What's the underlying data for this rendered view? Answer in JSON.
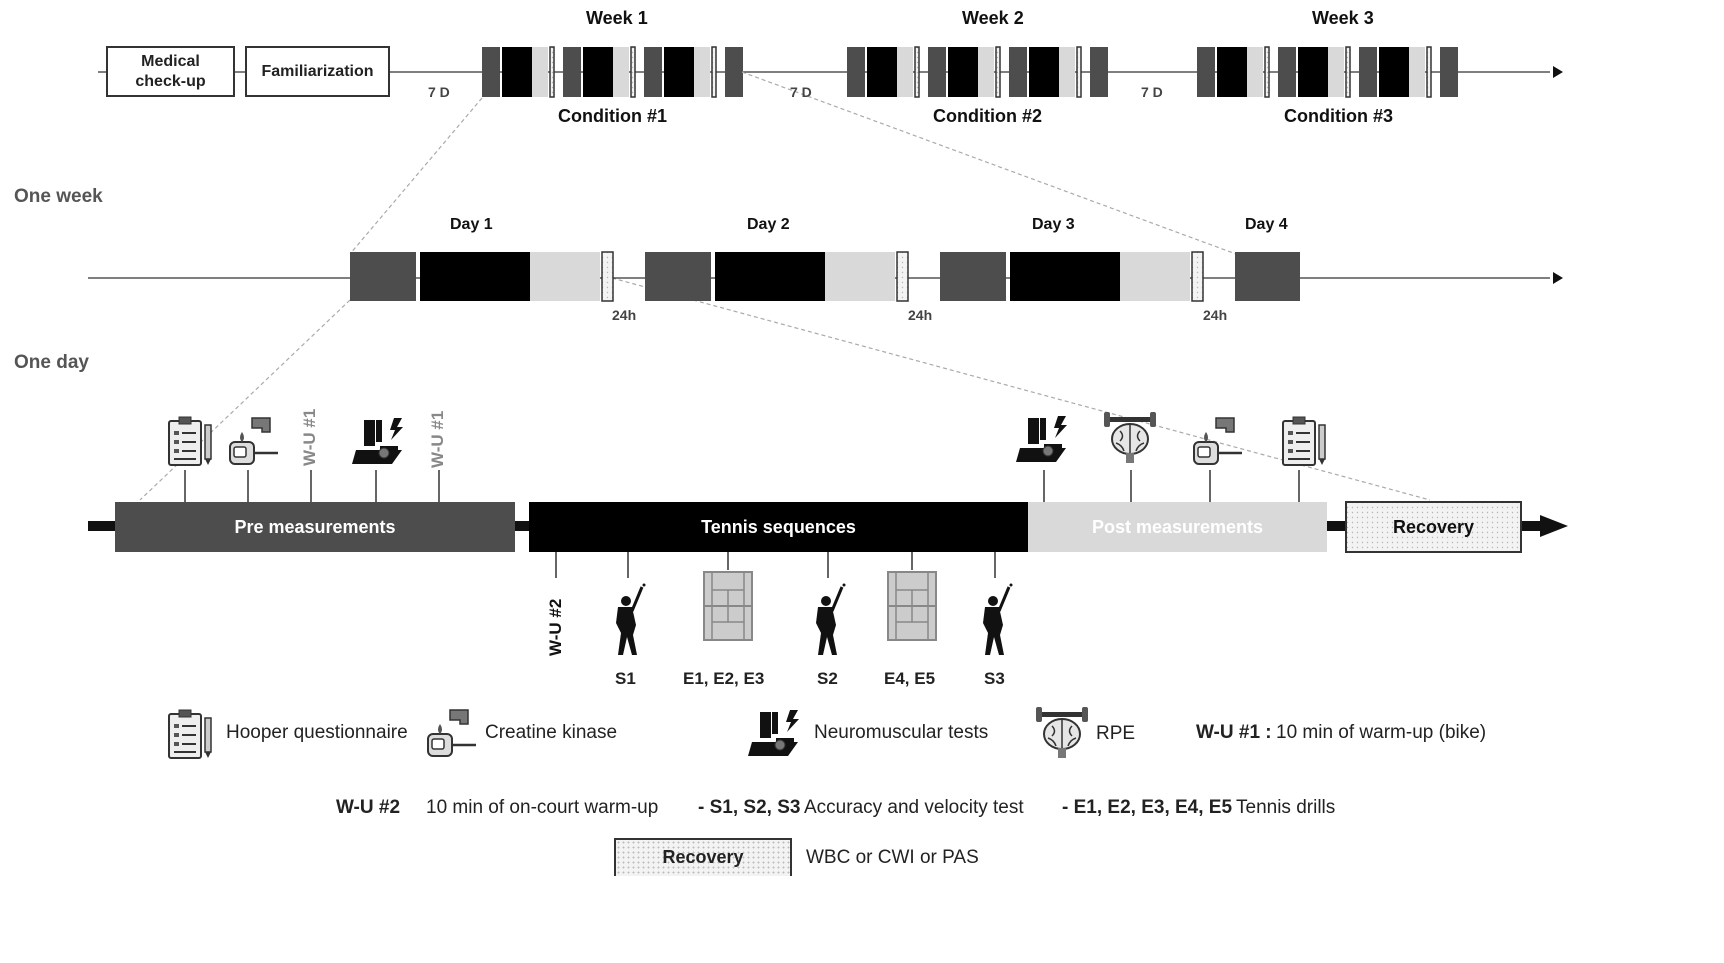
{
  "weeks": {
    "labels": [
      "Week 1",
      "Week 2",
      "Week 3"
    ],
    "conditions": [
      "Condition #1",
      "Condition #2",
      "Condition #3"
    ],
    "gap_label": "7 D",
    "medical": [
      "Medical",
      "check-up"
    ],
    "familiarization": "Familiarization"
  },
  "one_week": {
    "title": "One week",
    "days": [
      "Day 1",
      "Day 2",
      "Day 3",
      "Day 4"
    ],
    "gap_label": "24h"
  },
  "one_day": {
    "title": "One day",
    "pre": "Pre measurements",
    "tennis": "Tennis sequences",
    "post": "Post measurements",
    "recovery": "Recovery",
    "wu1": "W-U #1",
    "wu2": "W-U #2",
    "sequence_labels": [
      "S1",
      "E1, E2, E3",
      "S2",
      "E4, E5",
      "S3"
    ]
  },
  "legend": {
    "hooper": "Hooper questionnaire",
    "ck": "Creatine kinase",
    "nm": "Neuromuscular tests",
    "rpe": "RPE",
    "wu1_key": "W-U #1 :",
    "wu1_desc": "10 min of warm-up (bike)",
    "wu2_key": "W-U #2",
    "wu2_desc": "10 min of on-court warm-up",
    "s_key": "- S1, S2, S3",
    "s_desc": "Accuracy and velocity test",
    "e_key": "- E1, E2, E3, E4, E5",
    "e_desc": "Tennis drills",
    "recovery_key": "Recovery",
    "recovery_desc": "WBC or CWI or PAS"
  },
  "colors": {
    "dark_gray": "#4d4d4d",
    "black": "#000000",
    "light_gray": "#d9d9d9"
  },
  "icons": [
    "clipboard-icon",
    "blood-drop-icon",
    "neuromuscular-icon",
    "brain-dumbbell-icon",
    "tennis-player-icon",
    "tennis-court-icon"
  ]
}
